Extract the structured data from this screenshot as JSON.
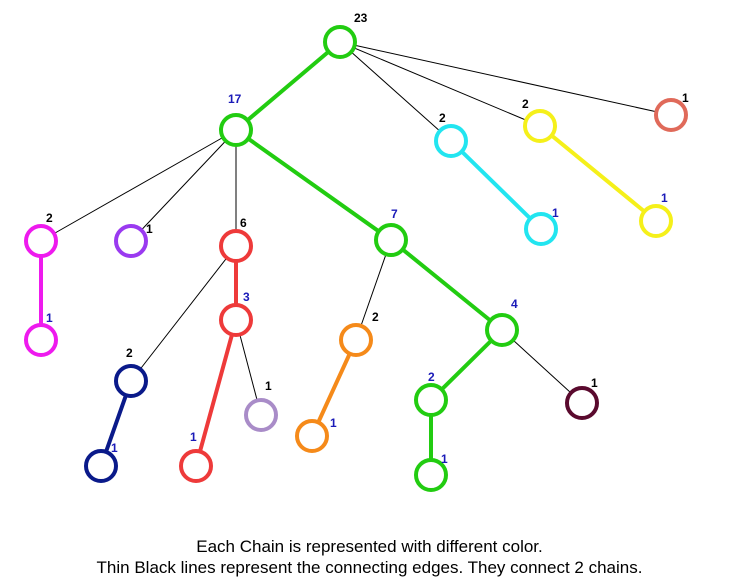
{
  "colors": {
    "thin_edge": "#000000",
    "heavy_label": "#1a1ab8",
    "light_label": "#000000",
    "background": "#ffffff"
  },
  "nodes": [
    {
      "id": "n23",
      "count": "23",
      "chain": "green",
      "label_kind": "light"
    },
    {
      "id": "n17",
      "count": "17",
      "chain": "green",
      "label_kind": "heavy"
    },
    {
      "id": "c2",
      "count": "2",
      "chain": "cyan",
      "label_kind": "light"
    },
    {
      "id": "c1",
      "count": "1",
      "chain": "cyan",
      "label_kind": "heavy"
    },
    {
      "id": "y2",
      "count": "2",
      "chain": "yellow",
      "label_kind": "light"
    },
    {
      "id": "y1",
      "count": "1",
      "chain": "yellow",
      "label_kind": "heavy"
    },
    {
      "id": "s1",
      "count": "1",
      "chain": "salmon",
      "label_kind": "light"
    },
    {
      "id": "m2",
      "count": "2",
      "chain": "magenta",
      "label_kind": "light"
    },
    {
      "id": "m1",
      "count": "1",
      "chain": "magenta",
      "label_kind": "heavy"
    },
    {
      "id": "p1",
      "count": "1",
      "chain": "purple",
      "label_kind": "light"
    },
    {
      "id": "r6",
      "count": "6",
      "chain": "red",
      "label_kind": "light"
    },
    {
      "id": "r3",
      "count": "3",
      "chain": "red",
      "label_kind": "heavy"
    },
    {
      "id": "r1",
      "count": "1",
      "chain": "red",
      "label_kind": "heavy"
    },
    {
      "id": "l1",
      "count": "1",
      "chain": "lavender",
      "label_kind": "light"
    },
    {
      "id": "n7",
      "count": "7",
      "chain": "green",
      "label_kind": "heavy"
    },
    {
      "id": "n4",
      "count": "4",
      "chain": "green",
      "label_kind": "heavy"
    },
    {
      "id": "g2",
      "count": "2",
      "chain": "green",
      "label_kind": "heavy"
    },
    {
      "id": "g1",
      "count": "1",
      "chain": "green",
      "label_kind": "heavy"
    },
    {
      "id": "o2",
      "count": "2",
      "chain": "orange",
      "label_kind": "light"
    },
    {
      "id": "o1",
      "count": "1",
      "chain": "orange",
      "label_kind": "heavy"
    },
    {
      "id": "d1",
      "count": "1",
      "chain": "maroon",
      "label_kind": "light"
    },
    {
      "id": "b2",
      "count": "2",
      "chain": "navy",
      "label_kind": "light"
    },
    {
      "id": "b1",
      "count": "1",
      "chain": "navy",
      "label_kind": "heavy"
    }
  ],
  "chains": {
    "green": "#22cc11",
    "cyan": "#22e5f0",
    "yellow": "#f5f01a",
    "salmon": "#e06a5a",
    "magenta": "#ee1aee",
    "purple": "#9a3af0",
    "red": "#ee3a3a",
    "lavender": "#a98cc8",
    "orange": "#f58a1a",
    "maroon": "#5a0a2e",
    "navy": "#0a1a8a"
  },
  "edges": [
    {
      "from": "n23",
      "to": "n17",
      "type": "heavy",
      "chain": "green"
    },
    {
      "from": "n17",
      "to": "n7",
      "type": "heavy",
      "chain": "green"
    },
    {
      "from": "n7",
      "to": "n4",
      "type": "heavy",
      "chain": "green"
    },
    {
      "from": "n4",
      "to": "g2",
      "type": "heavy",
      "chain": "green"
    },
    {
      "from": "g2",
      "to": "g1",
      "type": "heavy",
      "chain": "green"
    },
    {
      "from": "c2",
      "to": "c1",
      "type": "heavy",
      "chain": "cyan"
    },
    {
      "from": "y2",
      "to": "y1",
      "type": "heavy",
      "chain": "yellow"
    },
    {
      "from": "m2",
      "to": "m1",
      "type": "heavy",
      "chain": "magenta"
    },
    {
      "from": "r6",
      "to": "r3",
      "type": "heavy",
      "chain": "red"
    },
    {
      "from": "r3",
      "to": "r1",
      "type": "heavy",
      "chain": "red"
    },
    {
      "from": "o2",
      "to": "o1",
      "type": "heavy",
      "chain": "orange"
    },
    {
      "from": "b2",
      "to": "b1",
      "type": "heavy",
      "chain": "navy"
    },
    {
      "from": "n23",
      "to": "c2",
      "type": "light"
    },
    {
      "from": "n23",
      "to": "y2",
      "type": "light"
    },
    {
      "from": "n23",
      "to": "s1",
      "type": "light"
    },
    {
      "from": "n17",
      "to": "m2",
      "type": "light"
    },
    {
      "from": "n17",
      "to": "p1",
      "type": "light"
    },
    {
      "from": "n17",
      "to": "r6",
      "type": "light"
    },
    {
      "from": "r6",
      "to": "b2",
      "type": "light"
    },
    {
      "from": "r3",
      "to": "l1",
      "type": "light"
    },
    {
      "from": "n7",
      "to": "o2",
      "type": "light"
    },
    {
      "from": "n4",
      "to": "d1",
      "type": "light"
    }
  ],
  "caption": {
    "line1": "Each Chain is represented with different color.",
    "line2": "Thin Black lines represent the connecting edges. They connect 2 chains."
  }
}
